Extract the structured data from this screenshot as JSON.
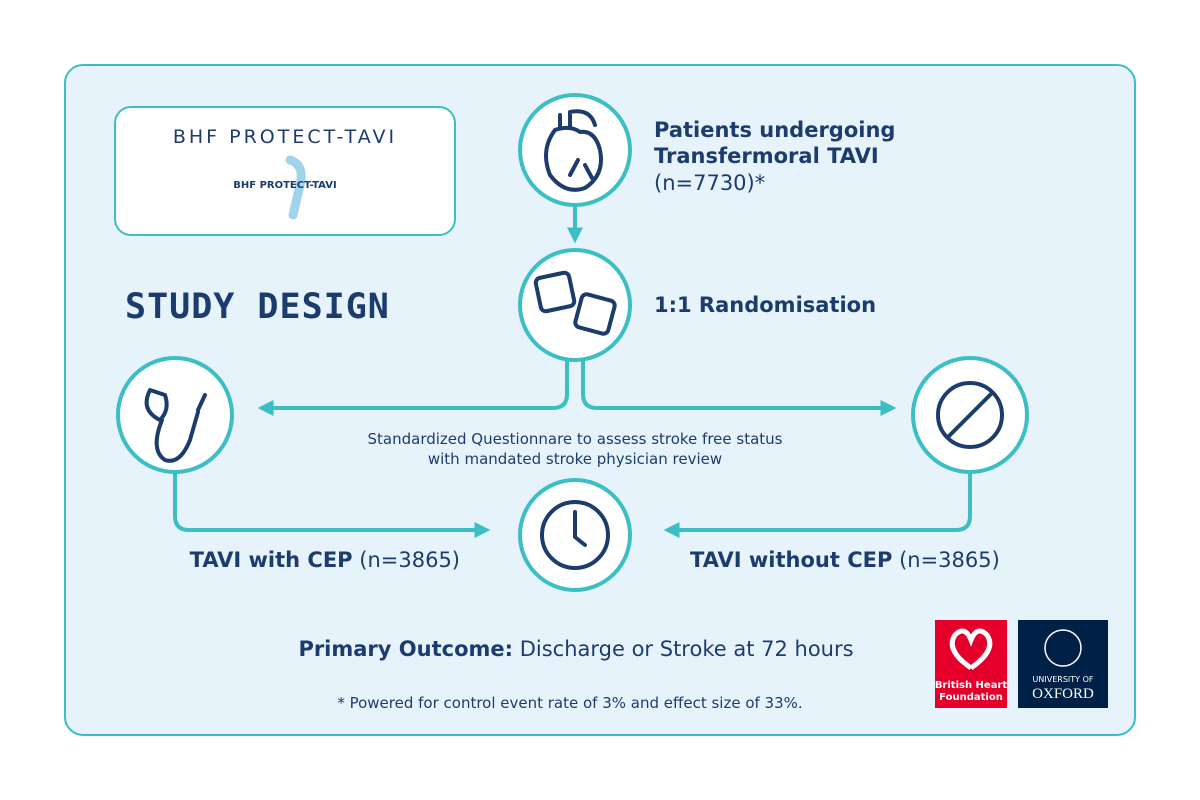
{
  "logo": {
    "title": "BHF PROTECT-TAVI",
    "subtitle": "BHF PROTECT-TAVI"
  },
  "heading": "STUDY DESIGN",
  "nodes": [
    {
      "lines": [
        "Patients undergoing",
        "Transfermoral TAVI"
      ],
      "detail": "(n=7730)*"
    },
    {
      "label": "1:1 Randomisation"
    }
  ],
  "follow_up": {
    "lines": [
      "Standardized Questionnare to assess stroke free status",
      "with mandated stroke physician review"
    ]
  },
  "arms": [
    {
      "label": "TAVI with CEP",
      "detail": "(n=3865)"
    },
    {
      "label": "TAVI without CEP",
      "detail": "(n=3865)"
    }
  ],
  "outcome": {
    "label": "Primary Outcome:",
    "detail": "Discharge or Stroke at 72 hours"
  },
  "footnote": "* Powered for control event rate of 3% and effect size of 33%.",
  "partners": [
    {
      "lines": [
        "British Heart",
        "Foundation"
      ]
    },
    {
      "lines": [
        "UNIVERSITY OF",
        "OXFORD"
      ]
    }
  ]
}
